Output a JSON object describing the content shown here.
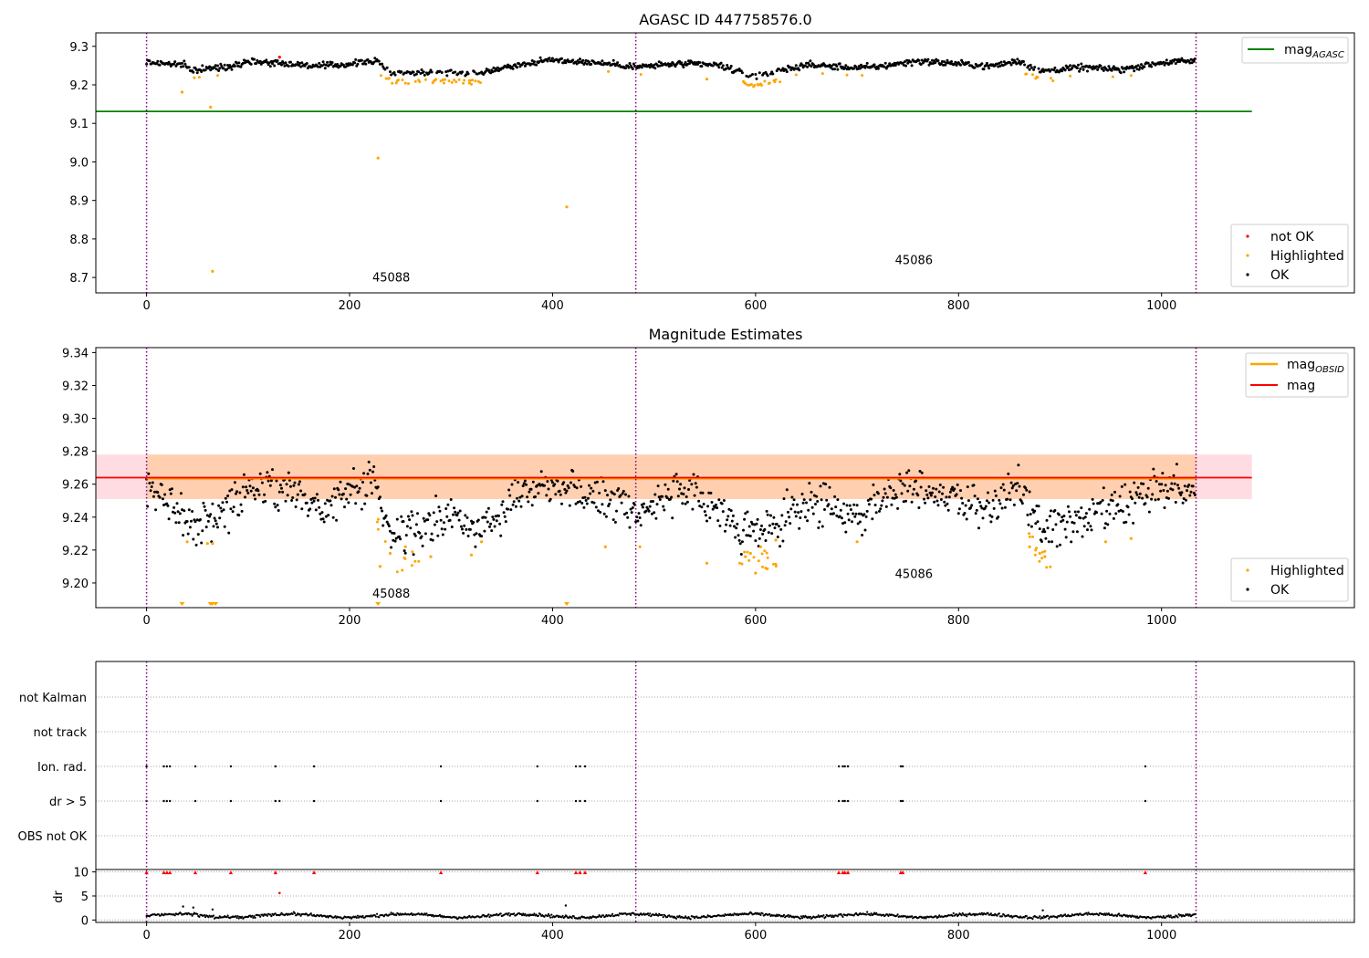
{
  "chart_data": [
    {
      "id": "agasc",
      "type": "scatter",
      "title": "AGASC ID 447758576.0",
      "xlim": [
        -50,
        1190
      ],
      "ylim": [
        8.66,
        9.335
      ],
      "xticks": [
        0,
        200,
        400,
        600,
        800,
        1000
      ],
      "yticks": [
        8.7,
        8.8,
        8.9,
        9.0,
        9.1,
        9.2,
        9.3
      ],
      "vlines": [
        0,
        482,
        1034
      ],
      "obsid_labels": [
        {
          "text": "45088",
          "x": 241,
          "y": 8.69
        },
        {
          "text": "45086",
          "x": 756,
          "y": 8.735
        }
      ],
      "mag_agasc": {
        "value": 9.131,
        "x_range": [
          -50,
          1089
        ]
      },
      "legend_top": {
        "mag_label": "mag",
        "mag_sub": "AGASC",
        "mag_color": "#008000"
      },
      "legend_bottom": [
        {
          "label": "not OK",
          "color": "#ff0000"
        },
        {
          "label": "Highlighted",
          "color": "#ffa500"
        },
        {
          "label": "OK",
          "color": "#000000"
        }
      ],
      "baseline_segments": [
        [
          0,
          9.259
        ],
        [
          35,
          9.252
        ],
        [
          45,
          9.238
        ],
        [
          80,
          9.247
        ],
        [
          100,
          9.262
        ],
        [
          140,
          9.255
        ],
        [
          170,
          9.248
        ],
        [
          200,
          9.254
        ],
        [
          225,
          9.263
        ],
        [
          240,
          9.233
        ],
        [
          300,
          9.232
        ],
        [
          330,
          9.23
        ],
        [
          350,
          9.245
        ],
        [
          400,
          9.265
        ],
        [
          440,
          9.258
        ],
        [
          470,
          9.251
        ],
        [
          482,
          9.246
        ],
        [
          520,
          9.254
        ],
        [
          560,
          9.252
        ],
        [
          575,
          9.242
        ],
        [
          595,
          9.223
        ],
        [
          625,
          9.237
        ],
        [
          650,
          9.252
        ],
        [
          700,
          9.244
        ],
        [
          720,
          9.247
        ],
        [
          760,
          9.262
        ],
        [
          800,
          9.255
        ],
        [
          830,
          9.248
        ],
        [
          860,
          9.262
        ],
        [
          880,
          9.236
        ],
        [
          920,
          9.245
        ],
        [
          960,
          9.24
        ],
        [
          1000,
          9.258
        ],
        [
          1034,
          9.262
        ]
      ],
      "highlight_outliers": [
        [
          35,
          9.181
        ],
        [
          63,
          9.142
        ],
        [
          65,
          8.716
        ],
        [
          228,
          9.01
        ],
        [
          414,
          8.883
        ],
        [
          552,
          9.215
        ]
      ],
      "not_ok": [
        [
          131,
          9.272
        ]
      ],
      "point_counts": {
        "ok": 1034
      }
    },
    {
      "id": "magest",
      "type": "scatter",
      "title": "Magnitude Estimates",
      "xlim": [
        -50,
        1190
      ],
      "ylim": [
        9.185,
        9.343
      ],
      "xticks": [
        0,
        200,
        400,
        600,
        800,
        1000
      ],
      "yticks": [
        9.2,
        9.22,
        9.24,
        9.26,
        9.28,
        9.3,
        9.32,
        9.34
      ],
      "vlines": [
        0,
        482,
        1034
      ],
      "obsid_labels": [
        {
          "text": "45088",
          "x": 241,
          "y": 9.191
        },
        {
          "text": "45086",
          "x": 756,
          "y": 9.203
        }
      ],
      "mag_line": {
        "value": 9.264,
        "x_range": [
          -50,
          1089
        ],
        "band": [
          9.251,
          9.278
        ],
        "color": "#ff0000"
      },
      "mag_obsid": [
        {
          "x_range": [
            0,
            482
          ],
          "value": 9.2635,
          "band": [
            9.251,
            9.278
          ]
        },
        {
          "x_range": [
            482,
            1034
          ],
          "value": 9.2635,
          "band": [
            9.251,
            9.278
          ]
        }
      ],
      "legend_top": [
        {
          "label": "mag",
          "sub": "OBSID",
          "color": "#ffa500"
        },
        {
          "label": "mag",
          "sub": "",
          "color": "#ff0000"
        }
      ],
      "legend_bottom": [
        {
          "label": "Highlighted",
          "color": "#ffa500"
        },
        {
          "label": "OK",
          "color": "#000000"
        }
      ],
      "clipped_markers": [
        35,
        63,
        65,
        68,
        228,
        414
      ],
      "baseline_segments": [
        [
          0,
          9.255
        ],
        [
          30,
          9.248
        ],
        [
          45,
          9.235
        ],
        [
          70,
          9.24
        ],
        [
          100,
          9.258
        ],
        [
          140,
          9.258
        ],
        [
          170,
          9.245
        ],
        [
          210,
          9.258
        ],
        [
          225,
          9.262
        ],
        [
          240,
          9.229
        ],
        [
          270,
          9.233
        ],
        [
          300,
          9.24
        ],
        [
          330,
          9.232
        ],
        [
          360,
          9.253
        ],
        [
          400,
          9.262
        ],
        [
          440,
          9.252
        ],
        [
          470,
          9.25
        ],
        [
          482,
          9.243
        ],
        [
          520,
          9.255
        ],
        [
          560,
          9.248
        ],
        [
          580,
          9.233
        ],
        [
          600,
          9.23
        ],
        [
          625,
          9.235
        ],
        [
          650,
          9.25
        ],
        [
          700,
          9.24
        ],
        [
          730,
          9.255
        ],
        [
          760,
          9.26
        ],
        [
          800,
          9.25
        ],
        [
          830,
          9.245
        ],
        [
          860,
          9.258
        ],
        [
          880,
          9.232
        ],
        [
          920,
          9.238
        ],
        [
          960,
          9.245
        ],
        [
          1000,
          9.258
        ],
        [
          1034,
          9.255
        ]
      ],
      "spread": 0.012,
      "highlight_dips": [
        [
          40,
          9.225
        ],
        [
          60,
          9.224
        ],
        [
          65,
          9.224
        ],
        [
          230,
          9.21
        ],
        [
          240,
          9.218
        ],
        [
          255,
          9.222
        ],
        [
          280,
          9.216
        ],
        [
          320,
          9.217
        ],
        [
          330,
          9.225
        ],
        [
          452,
          9.222
        ],
        [
          486,
          9.222
        ],
        [
          552,
          9.212
        ],
        [
          590,
          9.216
        ],
        [
          595,
          9.218
        ],
        [
          600,
          9.206
        ],
        [
          605,
          9.222
        ],
        [
          610,
          9.209
        ],
        [
          620,
          9.226
        ],
        [
          700,
          9.225
        ],
        [
          870,
          9.222
        ],
        [
          880,
          9.218
        ],
        [
          885,
          9.216
        ],
        [
          945,
          9.225
        ],
        [
          970,
          9.227
        ]
      ]
    },
    {
      "id": "flags",
      "type": "scatter",
      "xlim": [
        -50,
        1190
      ],
      "categories": [
        "not Kalman",
        "not track",
        "Ion. rad.",
        "dr > 5",
        "OBS not OK"
      ],
      "vlines": [
        0,
        482,
        1034
      ],
      "ion_rad_x": [
        0,
        17,
        20,
        23,
        48,
        83,
        127,
        165,
        290,
        385,
        423,
        427,
        432,
        682,
        686,
        688,
        691,
        743,
        745,
        984
      ],
      "dr5_x": [
        0,
        17,
        20,
        23,
        48,
        83,
        127,
        131,
        165,
        290,
        385,
        423,
        427,
        432,
        682,
        686,
        688,
        691,
        743,
        745,
        984
      ]
    },
    {
      "id": "dr",
      "type": "scatter",
      "xlim": [
        -50,
        1190
      ],
      "ylim": [
        -0.5,
        10.5
      ],
      "ylabel": "dr",
      "yticks": [
        0,
        5,
        10
      ],
      "xticks": [
        0,
        200,
        400,
        600,
        800,
        1000
      ],
      "vlines": [
        0,
        482,
        1034
      ],
      "capped_x": [
        0,
        17,
        20,
        23,
        48,
        83,
        127,
        165,
        290,
        385,
        423,
        427,
        432,
        682,
        686,
        688,
        691,
        743,
        745,
        984
      ],
      "red_points": [
        [
          131,
          5.6
        ]
      ],
      "outliers": [
        [
          36,
          2.8
        ],
        [
          65,
          2.2
        ],
        [
          46,
          2.6
        ],
        [
          413,
          3.0
        ],
        [
          883,
          2.0
        ]
      ]
    }
  ]
}
